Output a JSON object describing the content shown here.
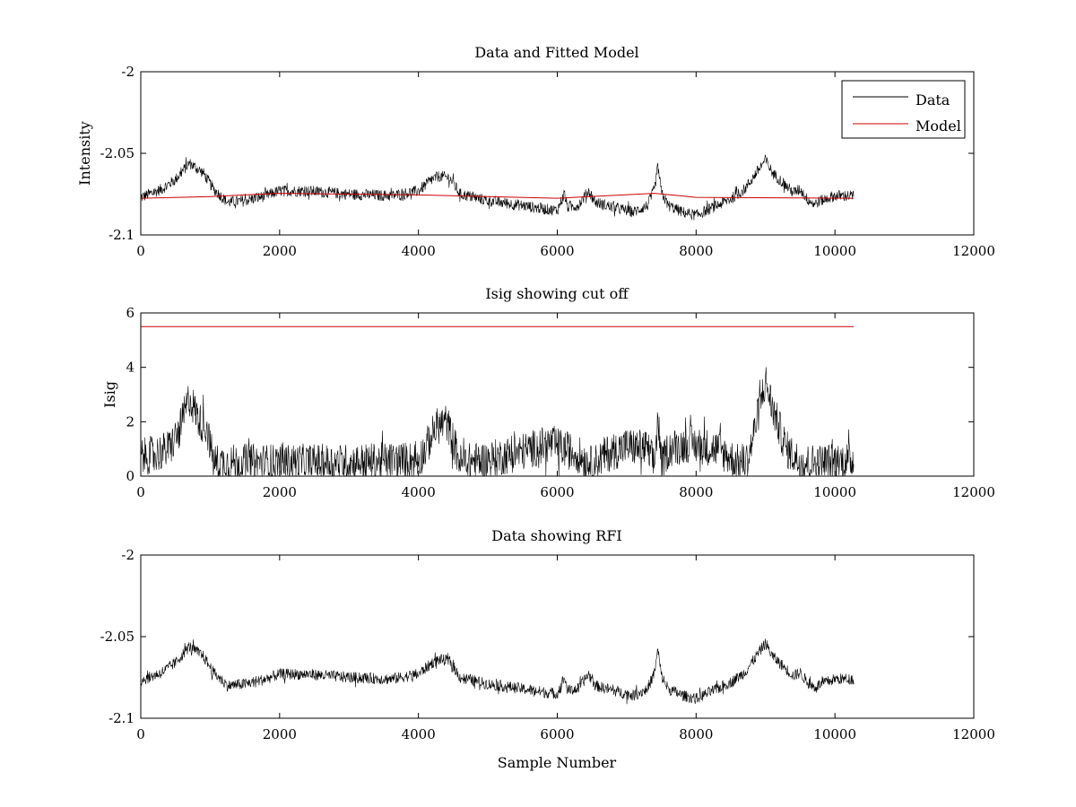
{
  "figure": {
    "xlabel": "Sample Number"
  },
  "chart_data": [
    {
      "type": "line",
      "title": "Data and Fitted Model",
      "ylabel": "Intensity",
      "xlabel": "",
      "xlim": [
        0,
        12000
      ],
      "ylim": [
        -2.1,
        -2.0
      ],
      "xticks": [
        0,
        2000,
        4000,
        6000,
        8000,
        10000,
        12000
      ],
      "yticks": [
        -2.1,
        -2.05,
        -2.0
      ],
      "xtick_labels": [
        "0",
        "2000",
        "4000",
        "6000",
        "8000",
        "10000",
        "12000"
      ],
      "ytick_labels": [
        "-2.1",
        "-2.05",
        "-2"
      ],
      "legend": {
        "position": "top-right",
        "entries": [
          "Data",
          "Model"
        ]
      },
      "series": [
        {
          "name": "Data",
          "color": "#000000",
          "noise": 0.0035,
          "x": [
            0,
            300,
            500,
            700,
            900,
            1050,
            1250,
            1500,
            1800,
            2000,
            2400,
            3000,
            3600,
            4000,
            4200,
            4300,
            4450,
            4600,
            5000,
            5500,
            5800,
            6000,
            6100,
            6150,
            6300,
            6450,
            6550,
            6800,
            7100,
            7300,
            7400,
            7450,
            7500,
            7600,
            7800,
            8000,
            8200,
            8500,
            8700,
            8850,
            9000,
            9100,
            9300,
            9400,
            9500,
            9600,
            9700,
            9800,
            10000,
            10270
          ],
          "y": [
            -2.077,
            -2.072,
            -2.066,
            -2.056,
            -2.062,
            -2.072,
            -2.08,
            -2.079,
            -2.076,
            -2.073,
            -2.073,
            -2.075,
            -2.076,
            -2.073,
            -2.066,
            -2.064,
            -2.065,
            -2.075,
            -2.079,
            -2.082,
            -2.084,
            -2.085,
            -2.075,
            -2.083,
            -2.082,
            -2.073,
            -2.08,
            -2.083,
            -2.086,
            -2.082,
            -2.072,
            -2.058,
            -2.074,
            -2.082,
            -2.086,
            -2.088,
            -2.084,
            -2.078,
            -2.072,
            -2.063,
            -2.054,
            -2.062,
            -2.07,
            -2.074,
            -2.072,
            -2.078,
            -2.081,
            -2.079,
            -2.076,
            -2.076
          ]
        },
        {
          "name": "Model",
          "color": "#cc0000",
          "x": [
            0,
            1000,
            2000,
            4000,
            6000,
            7400,
            8000,
            10270
          ],
          "y": [
            -2.0775,
            -2.0765,
            -2.0745,
            -2.0755,
            -2.0775,
            -2.0745,
            -2.077,
            -2.0775
          ]
        }
      ]
    },
    {
      "type": "line",
      "title": "Isig showing cut off",
      "ylabel": "Isig",
      "xlabel": "",
      "xlim": [
        0,
        12000
      ],
      "ylim": [
        0,
        6
      ],
      "xticks": [
        0,
        2000,
        4000,
        6000,
        8000,
        10000,
        12000
      ],
      "yticks": [
        0,
        2,
        4,
        6
      ],
      "xtick_labels": [
        "0",
        "2000",
        "4000",
        "6000",
        "8000",
        "10000",
        "12000"
      ],
      "ytick_labels": [
        "0",
        "2",
        "4",
        "6"
      ],
      "series": [
        {
          "color": "#000000",
          "noise": 0.7,
          "x": [
            0,
            200,
            400,
            550,
            700,
            850,
            950,
            1050,
            1300,
            2000,
            3000,
            4000,
            4100,
            4250,
            4400,
            4500,
            4600,
            5000,
            5500,
            5900,
            6300,
            6500,
            6700,
            7000,
            7300,
            7400,
            7450,
            7500,
            7600,
            7900,
            8300,
            8600,
            8750,
            8850,
            9000,
            9100,
            9300,
            9500,
            9800,
            10270
          ],
          "y": [
            0.7,
            0.8,
            1.0,
            1.6,
            2.9,
            2.0,
            1.8,
            0.5,
            0.5,
            0.5,
            0.5,
            0.6,
            1.0,
            1.8,
            2.0,
            1.3,
            0.5,
            0.6,
            0.9,
            1.2,
            0.8,
            0.4,
            0.8,
            1.1,
            1.0,
            0.4,
            2.2,
            0.4,
            1.0,
            1.2,
            1.0,
            0.5,
            0.6,
            1.8,
            3.5,
            2.5,
            1.0,
            0.5,
            0.5,
            0.6
          ]
        },
        {
          "color": "#cc0000",
          "x": [
            0,
            10270
          ],
          "y": [
            5.5,
            5.5
          ]
        }
      ]
    },
    {
      "type": "line",
      "title": "Data showing RFI",
      "ylabel": "",
      "xlabel": "Sample Number",
      "xlim": [
        0,
        12000
      ],
      "ylim": [
        -2.1,
        -2.0
      ],
      "xticks": [
        0,
        2000,
        4000,
        6000,
        8000,
        10000,
        12000
      ],
      "yticks": [
        -2.1,
        -2.05,
        -2.0
      ],
      "xtick_labels": [
        "0",
        "2000",
        "4000",
        "6000",
        "8000",
        "10000",
        "12000"
      ],
      "ytick_labels": [
        "-2.1",
        "-2.05",
        "-2"
      ],
      "series": [
        {
          "color": "#000000",
          "noise": 0.0035,
          "x": [
            0,
            300,
            500,
            700,
            900,
            1050,
            1250,
            1500,
            1800,
            2000,
            2400,
            3000,
            3600,
            4000,
            4200,
            4300,
            4450,
            4600,
            5000,
            5500,
            5800,
            6000,
            6100,
            6150,
            6300,
            6450,
            6550,
            6800,
            7100,
            7300,
            7400,
            7450,
            7500,
            7600,
            7800,
            8000,
            8200,
            8500,
            8700,
            8850,
            9000,
            9100,
            9300,
            9400,
            9500,
            9600,
            9700,
            9800,
            10000,
            10270
          ],
          "y": [
            -2.077,
            -2.072,
            -2.066,
            -2.056,
            -2.062,
            -2.072,
            -2.08,
            -2.079,
            -2.076,
            -2.073,
            -2.073,
            -2.075,
            -2.076,
            -2.073,
            -2.066,
            -2.064,
            -2.065,
            -2.075,
            -2.079,
            -2.082,
            -2.084,
            -2.085,
            -2.075,
            -2.083,
            -2.082,
            -2.073,
            -2.08,
            -2.083,
            -2.086,
            -2.082,
            -2.072,
            -2.058,
            -2.074,
            -2.082,
            -2.086,
            -2.088,
            -2.084,
            -2.078,
            -2.072,
            -2.063,
            -2.054,
            -2.062,
            -2.07,
            -2.074,
            -2.072,
            -2.078,
            -2.081,
            -2.079,
            -2.076,
            -2.076
          ]
        }
      ]
    }
  ]
}
